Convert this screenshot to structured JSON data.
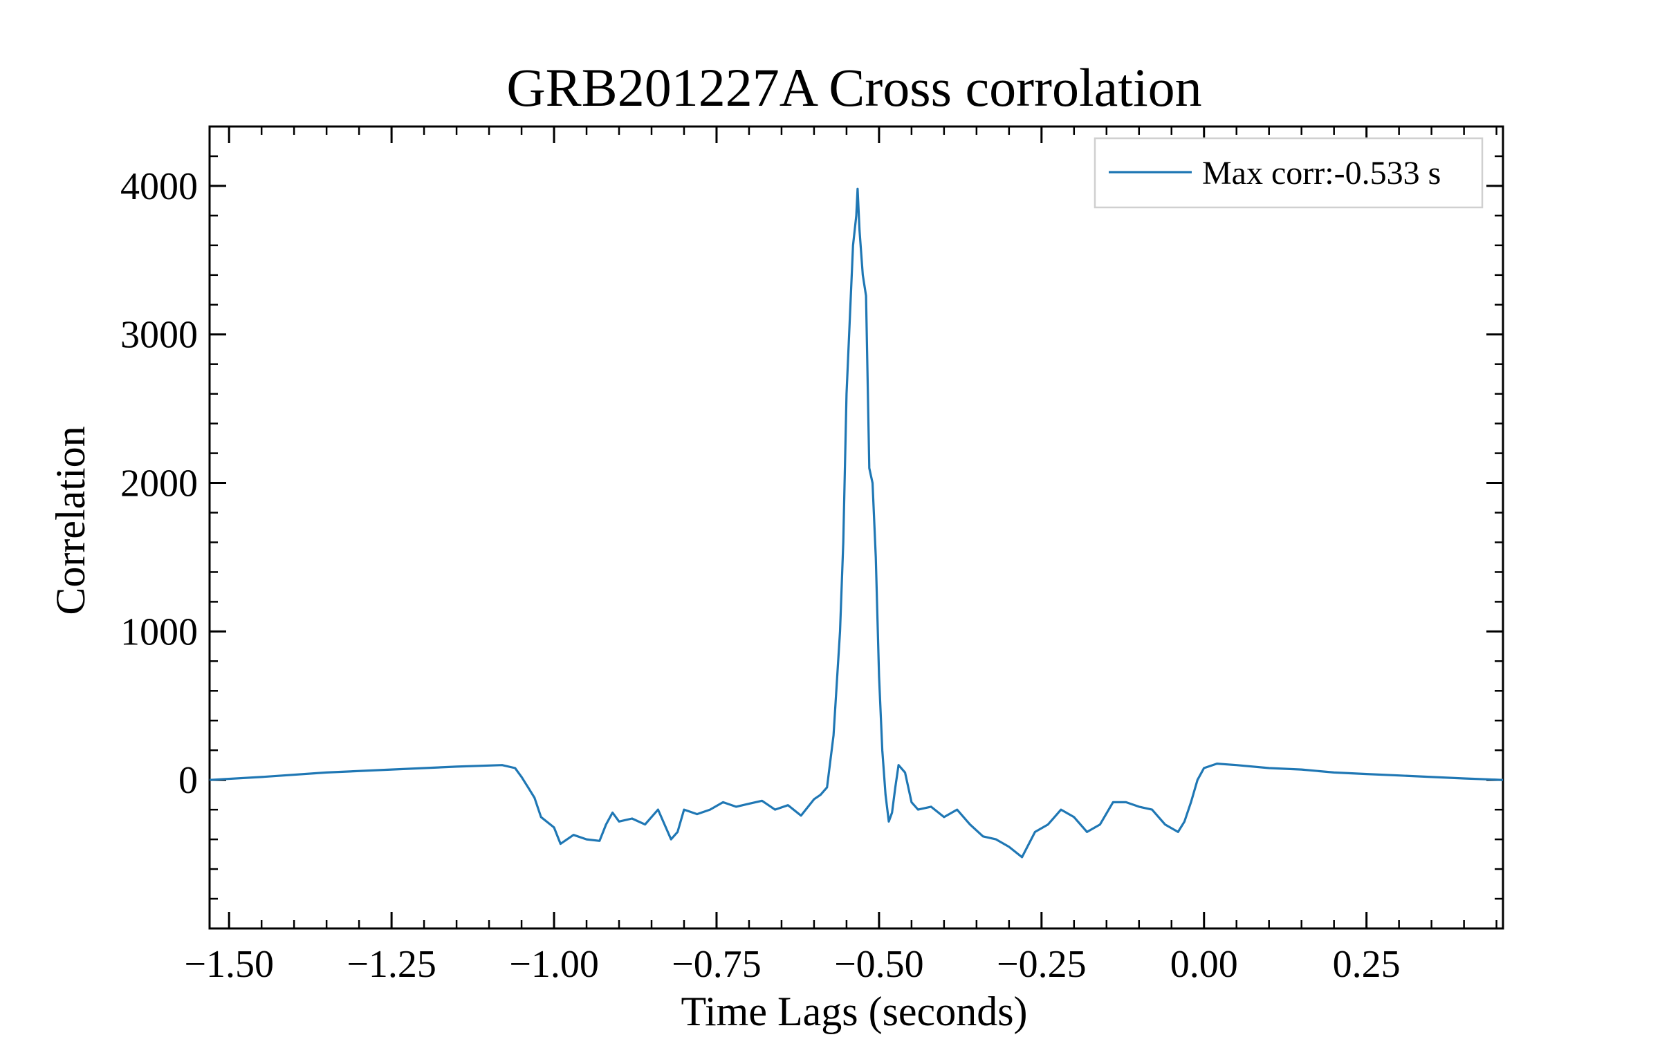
{
  "chart_data": {
    "type": "line",
    "title": "GRB201227A Cross corrolation",
    "xlabel": "Time Lags (seconds)",
    "ylabel": "Correlation",
    "xlim": [
      -1.53,
      0.46
    ],
    "ylim": [
      -1000,
      4400
    ],
    "xticks": [
      -1.5,
      -1.25,
      -1.0,
      -0.75,
      -0.5,
      -0.25,
      0.0,
      0.25
    ],
    "xtick_labels": [
      "−1.50",
      "−1.25",
      "−1.00",
      "−0.75",
      "−0.50",
      "−0.25",
      "0.00",
      "0.25"
    ],
    "yticks": [
      0,
      1000,
      2000,
      3000,
      4000
    ],
    "ytick_labels": [
      "0",
      "1000",
      "2000",
      "3000",
      "4000"
    ],
    "grid": false,
    "legend_position": "top-right",
    "line_color": "#1f77b4",
    "series": [
      {
        "name": "Max corr:-0.533 s",
        "x": [
          -1.53,
          -1.45,
          -1.35,
          -1.25,
          -1.15,
          -1.08,
          -1.06,
          -1.05,
          -1.04,
          -1.03,
          -1.02,
          -1.0,
          -0.99,
          -0.97,
          -0.95,
          -0.93,
          -0.92,
          -0.91,
          -0.9,
          -0.88,
          -0.86,
          -0.84,
          -0.82,
          -0.81,
          -0.8,
          -0.78,
          -0.76,
          -0.74,
          -0.72,
          -0.7,
          -0.68,
          -0.66,
          -0.64,
          -0.62,
          -0.6,
          -0.59,
          -0.58,
          -0.57,
          -0.56,
          -0.555,
          -0.55,
          -0.545,
          -0.54,
          -0.535,
          -0.533,
          -0.53,
          -0.525,
          -0.52,
          -0.515,
          -0.51,
          -0.505,
          -0.5,
          -0.495,
          -0.49,
          -0.485,
          -0.48,
          -0.475,
          -0.47,
          -0.46,
          -0.45,
          -0.44,
          -0.42,
          -0.4,
          -0.38,
          -0.36,
          -0.34,
          -0.32,
          -0.3,
          -0.28,
          -0.26,
          -0.24,
          -0.22,
          -0.2,
          -0.18,
          -0.16,
          -0.14,
          -0.12,
          -0.1,
          -0.08,
          -0.06,
          -0.04,
          -0.03,
          -0.02,
          -0.01,
          0.0,
          0.02,
          0.05,
          0.1,
          0.15,
          0.2,
          0.25,
          0.3,
          0.35,
          0.4,
          0.46
        ],
        "y": [
          0,
          20,
          50,
          70,
          90,
          100,
          80,
          20,
          -50,
          -120,
          -250,
          -320,
          -430,
          -370,
          -400,
          -410,
          -300,
          -220,
          -280,
          -260,
          -300,
          -200,
          -400,
          -350,
          -200,
          -230,
          -200,
          -150,
          -180,
          -160,
          -140,
          -200,
          -170,
          -240,
          -130,
          -100,
          -50,
          300,
          1000,
          1600,
          2600,
          3100,
          3600,
          3800,
          3980,
          3700,
          3400,
          3260,
          2100,
          2000,
          1500,
          700,
          200,
          -100,
          -280,
          -220,
          -50,
          100,
          50,
          -150,
          -200,
          -180,
          -250,
          -200,
          -300,
          -380,
          -400,
          -450,
          -520,
          -350,
          -300,
          -200,
          -250,
          -350,
          -300,
          -150,
          -150,
          -180,
          -200,
          -300,
          -350,
          -280,
          -150,
          0,
          80,
          110,
          100,
          80,
          70,
          50,
          40,
          30,
          20,
          10,
          0
        ]
      }
    ]
  }
}
